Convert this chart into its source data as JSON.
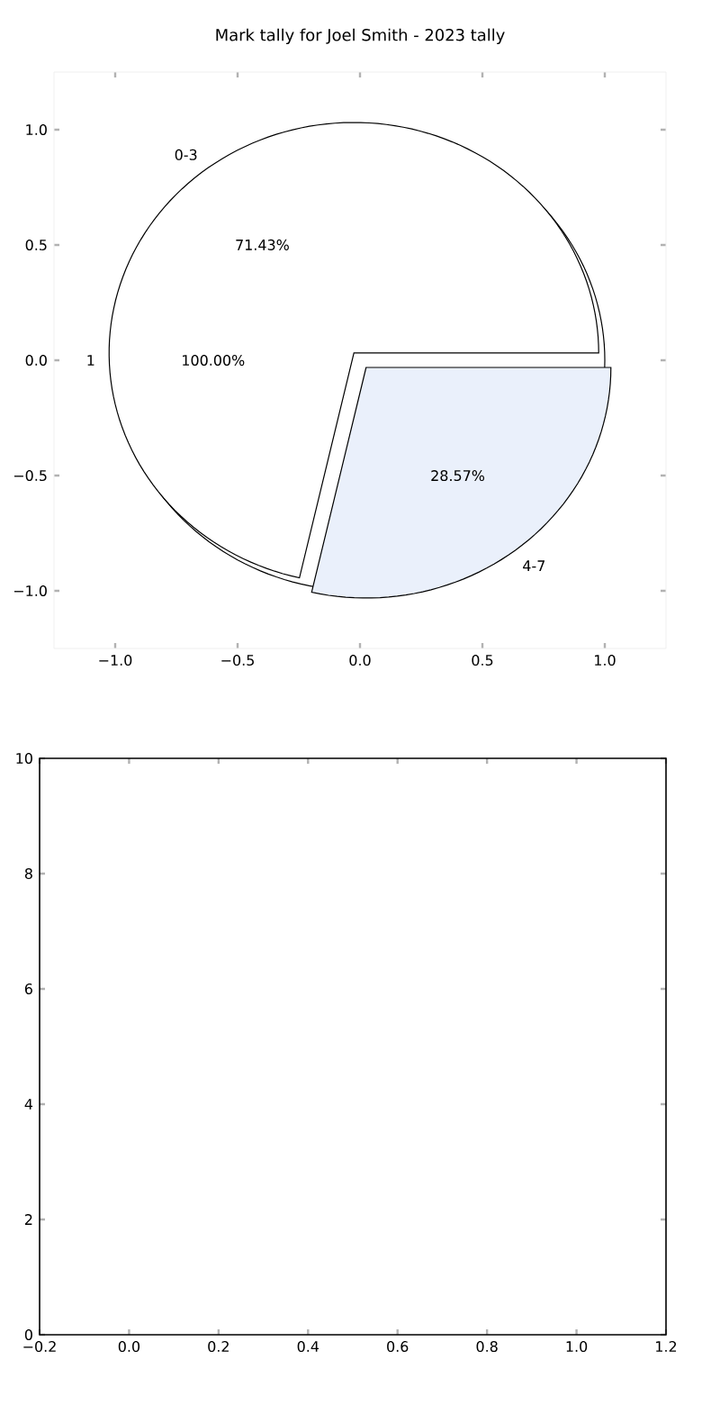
{
  "chart_data": [
    {
      "type": "scatter",
      "title": "Mark tally for Joel Smith - 2023 tally",
      "xlim": [
        -1.25,
        1.25
      ],
      "ylim": [
        -1.25,
        1.25
      ],
      "xticks": [
        {
          "value": -1,
          "label": "−1.0"
        },
        {
          "value": -0.5,
          "label": "−0.5"
        },
        {
          "value": 0,
          "label": "0.0"
        },
        {
          "value": 0.5,
          "label": "0.5"
        },
        {
          "value": 1,
          "label": "1.0"
        }
      ],
      "yticks": [
        {
          "value": -1,
          "label": "−1.0"
        },
        {
          "value": -0.5,
          "label": "−0.5"
        },
        {
          "value": 0,
          "label": "0.0"
        },
        {
          "value": 0.5,
          "label": "0.5"
        },
        {
          "value": 1,
          "label": "1.0"
        }
      ]
    },
    {
      "type": "pie",
      "categories": [
        "1"
      ],
      "values": [
        100
      ],
      "colors": [
        "#ffffff"
      ],
      "value_labels": [
        "100.00%"
      ]
    },
    {
      "type": "pie",
      "categories": [
        "0-3",
        "4-7"
      ],
      "values": [
        71.43,
        28.57
      ],
      "colors": [
        "#ffffff",
        "#eaf0fb"
      ],
      "value_labels": [
        "71.43%",
        "28.57%"
      ]
    },
    {
      "type": "scatter",
      "xlim": [
        -0.2,
        1.2
      ],
      "ylim": [
        0,
        10
      ],
      "xticks": [
        {
          "value": -0.2,
          "label": "−0.2"
        },
        {
          "value": 0,
          "label": "0.0"
        },
        {
          "value": 0.2,
          "label": "0.2"
        },
        {
          "value": 0.4,
          "label": "0.4"
        },
        {
          "value": 0.6,
          "label": "0.6"
        },
        {
          "value": 0.8,
          "label": "0.8"
        },
        {
          "value": 1,
          "label": "1.0"
        },
        {
          "value": 1.2,
          "label": "1.2"
        }
      ],
      "yticks": [
        {
          "value": 0,
          "label": "0"
        },
        {
          "value": 2,
          "label": "2"
        },
        {
          "value": 4,
          "label": "4"
        },
        {
          "value": 6,
          "label": "6"
        },
        {
          "value": 8,
          "label": "8"
        },
        {
          "value": 10,
          "label": "10"
        }
      ]
    }
  ]
}
